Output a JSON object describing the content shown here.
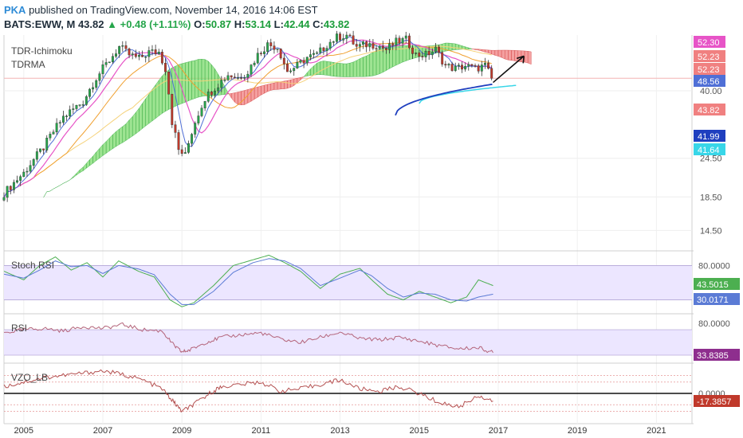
{
  "header": {
    "author": "PKA",
    "published_text": "published on TradingView.com, November 14, 2016 14:06 EST",
    "symbol": "BATS:EWW, M",
    "last": "43.82",
    "change": "+0.48 (+1.11%)",
    "open_label": "O:",
    "open": "50.87",
    "high_label": "H:",
    "high": "53.14",
    "low_label": "L:",
    "low": "42.44",
    "close_label": "C:",
    "close": "43.82",
    "up_arrow": "up-triangle"
  },
  "colors": {
    "up_candle": "#26a64b",
    "down_candle": "#c0392b",
    "cloud_bull": "#7ddb6e",
    "cloud_bear": "#f08080",
    "ma_fast": "#4f6fd6",
    "ma_pink": "#e754c7",
    "ma_orange": "#f0a030",
    "ma_yellow": "#f5d27a",
    "lr_cyan": "#38d6e8",
    "lr_blue": "#1f3fbf",
    "stoch_k": "#4caf50",
    "stoch_d": "#5b7bd5",
    "rsi_line": "#b4647a",
    "vzo_line": "#b45050",
    "band_fill": "#ece6ff"
  },
  "chart_data": [
    {
      "type": "candlestick",
      "indicators": [
        "TDR-Ichimoku",
        "TDRMA"
      ],
      "y_scale": "log",
      "ylim": [
        12.5,
        60
      ],
      "y_ticks": [
        "14.50",
        "18.50",
        "24.50",
        "40.00"
      ],
      "price_labels": [
        {
          "value": "52.30",
          "color": "#e754c7"
        },
        {
          "value": "52.23",
          "color": "#f08080"
        },
        {
          "value": "52.23",
          "color": "#f08080"
        },
        {
          "value": "48.56",
          "color": "#4f6fd6"
        },
        {
          "value": "43.82",
          "color": "#f08080"
        },
        {
          "value": "41.99",
          "color": "#1f3fbf"
        },
        {
          "value": "41.64",
          "color": "#38d6e8"
        }
      ],
      "x_ticks": [
        "2005",
        "2007",
        "2009",
        "2011",
        "2013",
        "2015",
        "2017",
        "2019",
        "2021"
      ],
      "price_path": [
        [
          "2004-07",
          19.0
        ],
        [
          "2005-01",
          22.0
        ],
        [
          "2005-07",
          26.5
        ],
        [
          "2006-01",
          33.0
        ],
        [
          "2006-07",
          37.0
        ],
        [
          "2006-11",
          44.0
        ],
        [
          "2007-03",
          50.0
        ],
        [
          "2007-06",
          55.0
        ],
        [
          "2007-09",
          52.0
        ],
        [
          "2007-12",
          50.5
        ],
        [
          "2008-03",
          53.0
        ],
        [
          "2008-06",
          53.0
        ],
        [
          "2008-08",
          47.0
        ],
        [
          "2008-10",
          32.0
        ],
        [
          "2008-12",
          26.0
        ],
        [
          "2009-02",
          25.0
        ],
        [
          "2009-05",
          32.0
        ],
        [
          "2009-08",
          38.0
        ],
        [
          "2009-12",
          42.0
        ],
        [
          "2010-03",
          45.0
        ],
        [
          "2010-06",
          44.0
        ],
        [
          "2010-09",
          46.0
        ],
        [
          "2010-12",
          52.0
        ],
        [
          "2011-03",
          56.0
        ],
        [
          "2011-06",
          55.0
        ],
        [
          "2011-09",
          46.0
        ],
        [
          "2011-12",
          48.0
        ],
        [
          "2012-03",
          51.0
        ],
        [
          "2012-06",
          52.0
        ],
        [
          "2012-09",
          56.0
        ],
        [
          "2012-12",
          59.0
        ],
        [
          "2013-03",
          60.0
        ],
        [
          "2013-06",
          55.0
        ],
        [
          "2013-09",
          56.0
        ],
        [
          "2013-12",
          56.0
        ],
        [
          "2014-03",
          54.0
        ],
        [
          "2014-06",
          57.0
        ],
        [
          "2014-09",
          58.0
        ],
        [
          "2014-12",
          52.0
        ],
        [
          "2015-03",
          52.0
        ],
        [
          "2015-06",
          54.0
        ],
        [
          "2015-09",
          48.0
        ],
        [
          "2015-12",
          47.0
        ],
        [
          "2016-03",
          48.0
        ],
        [
          "2016-06",
          47.0
        ],
        [
          "2016-09",
          48.0
        ],
        [
          "2016-11",
          43.82
        ]
      ]
    },
    {
      "type": "line",
      "title": "Stoch RSI",
      "ylim": [
        0,
        100
      ],
      "band": [
        20,
        80
      ],
      "y_ticks": [
        "80.0000"
      ],
      "last_values": [
        {
          "value": "43.5015",
          "color": "#4caf50"
        },
        {
          "value": "30.0171",
          "color": "#5b7bd5"
        }
      ],
      "series": [
        {
          "values": [
            [
              2004.5,
              70
            ],
            [
              2005.0,
              55
            ],
            [
              2005.4,
              80
            ],
            [
              2005.8,
              95
            ],
            [
              2006.2,
              72
            ],
            [
              2006.6,
              85
            ],
            [
              2007.0,
              60
            ],
            [
              2007.4,
              88
            ],
            [
              2007.9,
              70
            ],
            [
              2008.3,
              60
            ],
            [
              2008.7,
              20
            ],
            [
              2009.0,
              8
            ],
            [
              2009.3,
              15
            ],
            [
              2009.8,
              45
            ],
            [
              2010.3,
              80
            ],
            [
              2010.8,
              90
            ],
            [
              2011.2,
              98
            ],
            [
              2011.6,
              85
            ],
            [
              2012.0,
              70
            ],
            [
              2012.5,
              40
            ],
            [
              2013.0,
              65
            ],
            [
              2013.5,
              75
            ],
            [
              2013.8,
              55
            ],
            [
              2014.2,
              30
            ],
            [
              2014.6,
              20
            ],
            [
              2015.0,
              35
            ],
            [
              2015.4,
              25
            ],
            [
              2015.8,
              15
            ],
            [
              2016.2,
              25
            ],
            [
              2016.5,
              55
            ],
            [
              2016.87,
              45
            ]
          ]
        },
        {
          "values": [
            [
              2004.5,
              65
            ],
            [
              2005.0,
              58
            ],
            [
              2005.4,
              72
            ],
            [
              2005.8,
              88
            ],
            [
              2006.2,
              78
            ],
            [
              2006.6,
              80
            ],
            [
              2007.0,
              66
            ],
            [
              2007.4,
              80
            ],
            [
              2007.9,
              74
            ],
            [
              2008.3,
              64
            ],
            [
              2008.7,
              30
            ],
            [
              2009.0,
              12
            ],
            [
              2009.3,
              12
            ],
            [
              2009.8,
              35
            ],
            [
              2010.3,
              68
            ],
            [
              2010.8,
              85
            ],
            [
              2011.2,
              92
            ],
            [
              2011.6,
              88
            ],
            [
              2012.0,
              75
            ],
            [
              2012.5,
              45
            ],
            [
              2013.0,
              58
            ],
            [
              2013.5,
              72
            ],
            [
              2013.8,
              62
            ],
            [
              2014.2,
              40
            ],
            [
              2014.6,
              25
            ],
            [
              2015.0,
              32
            ],
            [
              2015.4,
              30
            ],
            [
              2015.8,
              20
            ],
            [
              2016.2,
              18
            ],
            [
              2016.5,
              25
            ],
            [
              2016.87,
              30
            ]
          ]
        }
      ]
    },
    {
      "type": "line",
      "title": "RSI",
      "ylim": [
        20,
        90
      ],
      "band": [
        30,
        70
      ],
      "y_ticks": [
        "80.0000"
      ],
      "last_values": [
        {
          "value": "33.8385",
          "color": "#8e2e8e"
        }
      ],
      "series": [
        {
          "values": [
            [
              2004.5,
              65
            ],
            [
              2005.0,
              70
            ],
            [
              2005.5,
              72
            ],
            [
              2006.0,
              68
            ],
            [
              2006.5,
              75
            ],
            [
              2007.0,
              72
            ],
            [
              2007.5,
              78
            ],
            [
              2008.0,
              70
            ],
            [
              2008.5,
              68
            ],
            [
              2008.8,
              45
            ],
            [
              2009.0,
              35
            ],
            [
              2009.2,
              38
            ],
            [
              2009.6,
              50
            ],
            [
              2010.0,
              58
            ],
            [
              2010.5,
              62
            ],
            [
              2011.0,
              65
            ],
            [
              2011.5,
              55
            ],
            [
              2012.0,
              50
            ],
            [
              2012.5,
              58
            ],
            [
              2013.0,
              66
            ],
            [
              2013.5,
              56
            ],
            [
              2014.0,
              54
            ],
            [
              2014.5,
              58
            ],
            [
              2015.0,
              52
            ],
            [
              2015.5,
              45
            ],
            [
              2016.0,
              40
            ],
            [
              2016.5,
              42
            ],
            [
              2016.87,
              34
            ]
          ]
        }
      ]
    },
    {
      "type": "line",
      "title": "VZO_LB",
      "ylim": [
        -60,
        60
      ],
      "zero_line": 0,
      "y_ticks": [
        "0.0000"
      ],
      "last_values": [
        {
          "value": "-17.3857",
          "color": "#c0392b"
        }
      ],
      "series": [
        {
          "values": [
            [
              2004.5,
              15
            ],
            [
              2005.0,
              25
            ],
            [
              2005.5,
              35
            ],
            [
              2006.0,
              40
            ],
            [
              2006.5,
              45
            ],
            [
              2007.0,
              50
            ],
            [
              2007.5,
              42
            ],
            [
              2008.0,
              30
            ],
            [
              2008.5,
              10
            ],
            [
              2008.8,
              -20
            ],
            [
              2009.0,
              -40
            ],
            [
              2009.3,
              -25
            ],
            [
              2009.7,
              0
            ],
            [
              2010.0,
              15
            ],
            [
              2010.5,
              20
            ],
            [
              2011.0,
              25
            ],
            [
              2011.5,
              5
            ],
            [
              2012.0,
              10
            ],
            [
              2012.5,
              20
            ],
            [
              2013.0,
              30
            ],
            [
              2013.5,
              10
            ],
            [
              2014.0,
              5
            ],
            [
              2014.5,
              15
            ],
            [
              2015.0,
              0
            ],
            [
              2015.5,
              -20
            ],
            [
              2016.0,
              -30
            ],
            [
              2016.5,
              -5
            ],
            [
              2016.87,
              -17
            ]
          ]
        }
      ]
    }
  ]
}
